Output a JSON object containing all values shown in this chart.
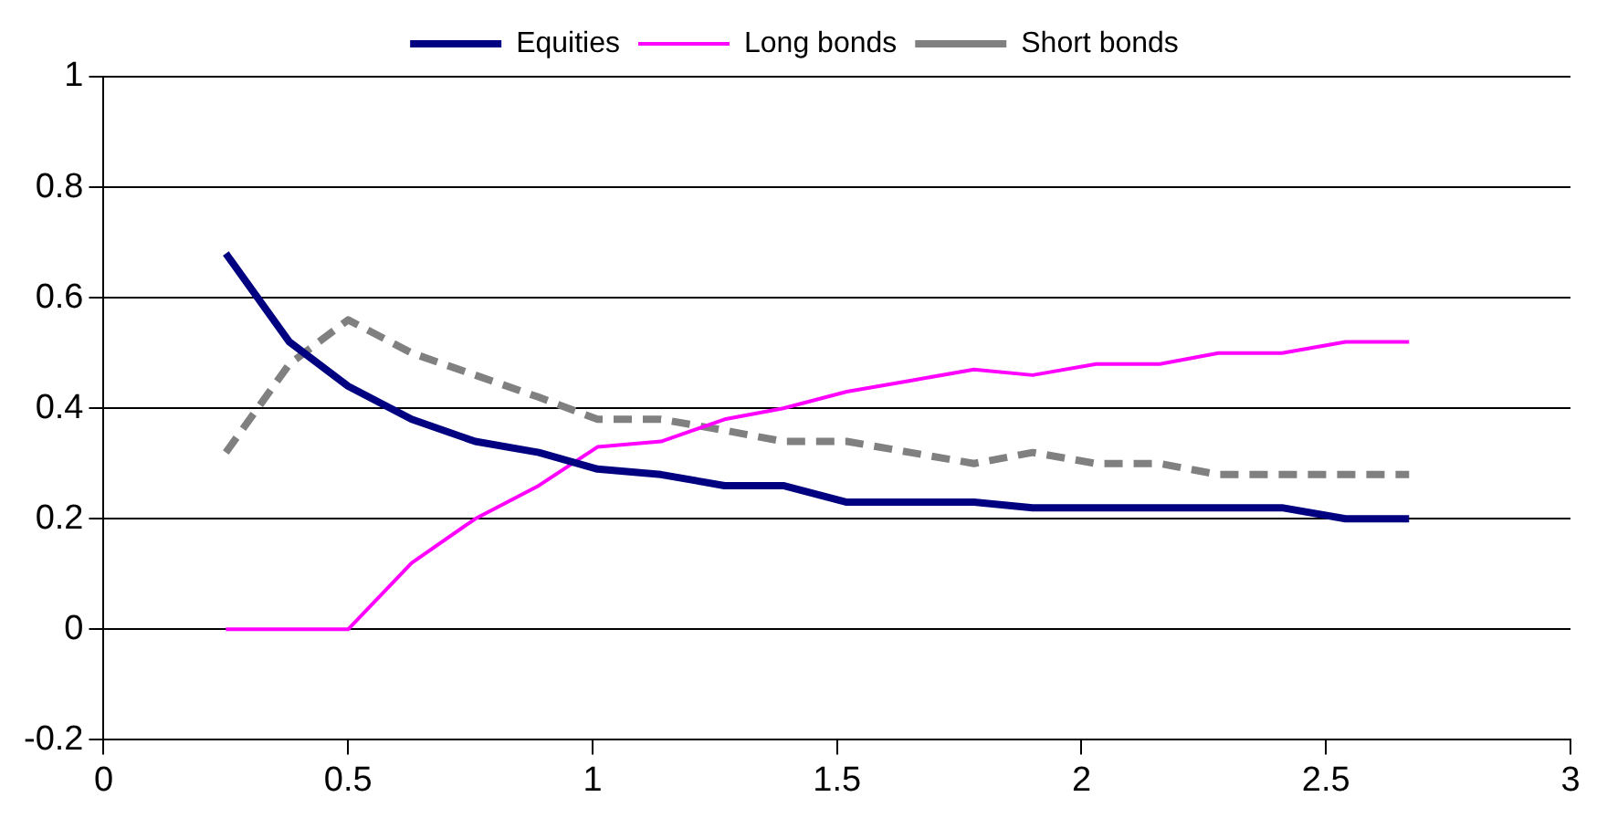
{
  "chart_data": {
    "type": "line",
    "x": [
      0.25,
      0.38,
      0.5,
      0.63,
      0.76,
      0.89,
      1.01,
      1.14,
      1.27,
      1.39,
      1.52,
      1.65,
      1.78,
      1.9,
      2.03,
      2.16,
      2.28,
      2.41,
      2.54,
      2.67
    ],
    "series": [
      {
        "name": "Equities",
        "color": "#000080",
        "values": [
          0.68,
          0.52,
          0.44,
          0.38,
          0.34,
          0.32,
          0.29,
          0.28,
          0.26,
          0.26,
          0.23,
          0.23,
          0.23,
          0.22,
          0.22,
          0.22,
          0.22,
          0.22,
          0.2,
          0.2
        ],
        "line_style": "solid"
      },
      {
        "name": "Long bonds",
        "color": "#ff00ff",
        "values": [
          0,
          0,
          0,
          0.12,
          0.2,
          0.26,
          0.33,
          0.34,
          0.38,
          0.4,
          0.43,
          0.45,
          0.47,
          0.46,
          0.48,
          0.48,
          0.5,
          0.5,
          0.52,
          0.52
        ],
        "line_style": "solid"
      },
      {
        "name": "Short bonds",
        "color": "#808080",
        "values": [
          0.32,
          0.48,
          0.56,
          0.5,
          0.46,
          0.42,
          0.38,
          0.38,
          0.36,
          0.34,
          0.34,
          0.32,
          0.3,
          0.32,
          0.3,
          0.3,
          0.28,
          0.28,
          0.28,
          0.28
        ],
        "line_style": "dashed"
      }
    ],
    "xlim": [
      0,
      3
    ],
    "xticks": [
      0,
      0.5,
      1,
      1.5,
      2,
      2.5,
      3
    ],
    "ylim": [
      -0.2,
      1
    ],
    "yticks": [
      -0.2,
      0,
      0.2,
      0.4,
      0.6,
      0.8,
      1
    ],
    "grid": "y",
    "legend": "top",
    "marker": "none"
  }
}
